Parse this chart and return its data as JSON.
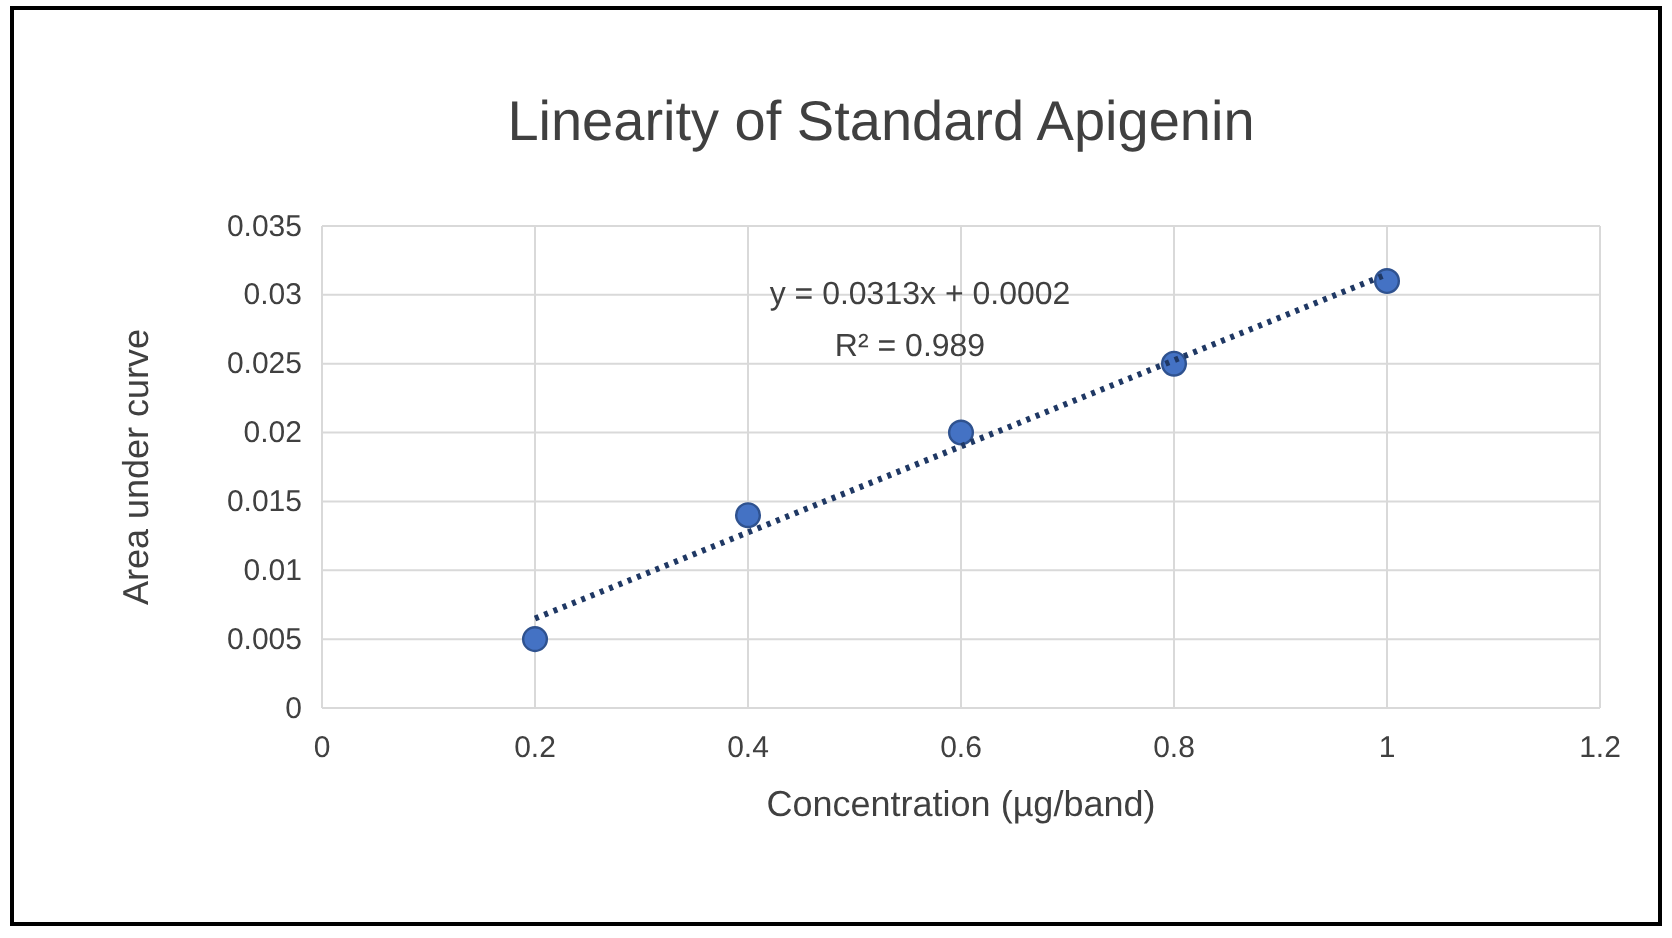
{
  "chart_data": {
    "type": "scatter",
    "title": "Linearity of Standard Apigenin",
    "xlabel": "Concentration (µg/band)",
    "ylabel": "Area under curve",
    "xlim": [
      0,
      1.2
    ],
    "xticks": [
      0,
      0.2,
      0.4,
      0.6,
      0.8,
      1,
      1.2
    ],
    "ylim": [
      0,
      0.035
    ],
    "yticks": [
      0,
      0.005,
      0.01,
      0.015,
      0.02,
      0.025,
      0.03,
      0.035
    ],
    "grid": true,
    "series": [
      {
        "color": "#4472c4",
        "marker": "circle",
        "x": [
          0.2,
          0.4,
          0.6,
          0.8,
          1
        ],
        "values": [
          0.005,
          0.014,
          0.02,
          0.025,
          0.031
        ]
      },
      {
        "type": "line",
        "color": "#1f3864",
        "marker": "none",
        "line_style": "dotted",
        "x": [
          0.2,
          1
        ],
        "values": [
          0.0065,
          0.0315
        ]
      }
    ],
    "annotations": [
      "y = 0.0313x + 0.0002",
      "R² = 0.989"
    ]
  }
}
